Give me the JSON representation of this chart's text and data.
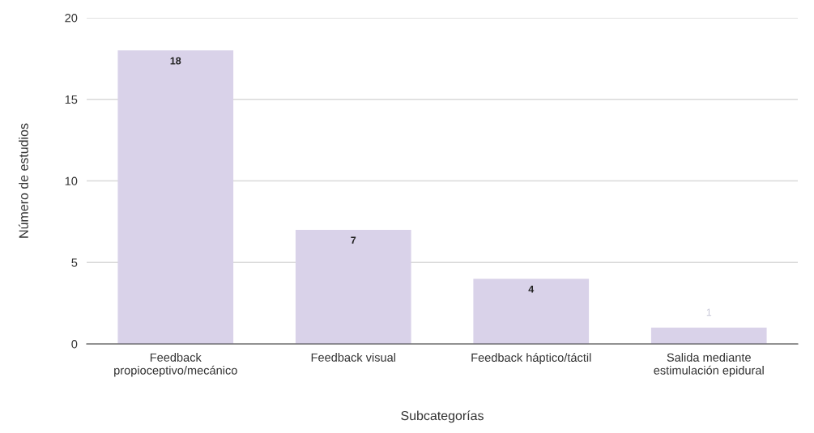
{
  "chart_data": {
    "type": "bar",
    "xlabel": "Subcategorías",
    "ylabel": "Número de estudios",
    "categories": [
      "Feedback\npropioceptivo/mecánico",
      "Feedback visual",
      "Feedback háptico/táctil",
      "Salida mediante\nestimulación epidural"
    ],
    "values": [
      18,
      7,
      4,
      1
    ],
    "color": "#d9d2e9",
    "ylim": [
      0,
      20
    ],
    "yticks": [
      0,
      5,
      10,
      15,
      20
    ],
    "grid": "y",
    "data_labels": true
  }
}
